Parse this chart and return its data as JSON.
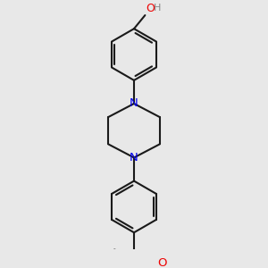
{
  "bg_color": "#e8e8e8",
  "bond_color": "#1a1a1a",
  "N_color": "#0000ee",
  "O_color": "#ee0000",
  "H_color": "#888888",
  "lw": 1.5,
  "dbo": 0.05,
  "r": 0.42,
  "xlim": [
    -0.75,
    0.75
  ],
  "ylim": [
    -0.35,
    3.65
  ]
}
